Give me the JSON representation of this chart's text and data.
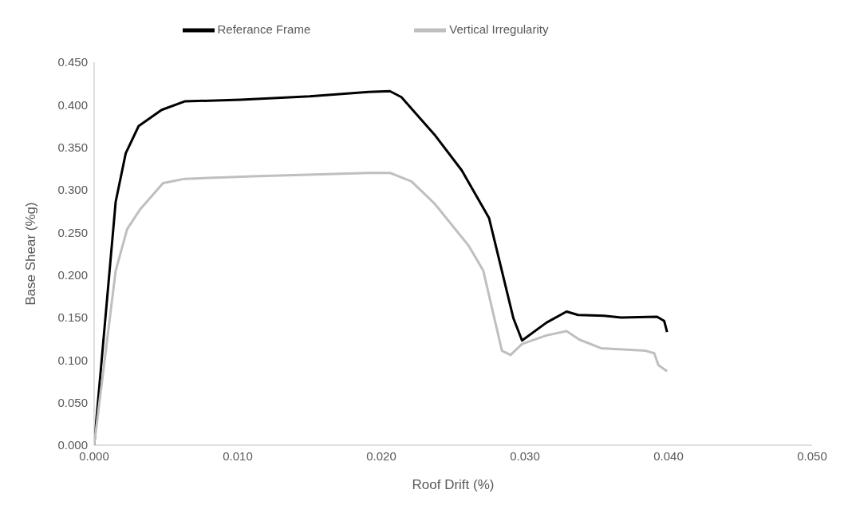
{
  "chart_data": {
    "type": "line",
    "xlabel": "Roof Drift (%)",
    "ylabel": "Base Shear (%g)",
    "xlim": [
      0,
      0.05
    ],
    "xticks": [
      {
        "value": 0,
        "label": "0.000"
      },
      {
        "value": 0.01,
        "label": "0.010"
      },
      {
        "value": 0.02,
        "label": "0.020"
      },
      {
        "value": 0.03,
        "label": "0.030"
      },
      {
        "value": 0.04,
        "label": "0.040"
      },
      {
        "value": 0.05,
        "label": "0.050"
      }
    ],
    "ylim": [
      0,
      0.45
    ],
    "yticks": [
      {
        "value": 0,
        "label": "0.000"
      },
      {
        "value": 0.05,
        "label": "0.050"
      },
      {
        "value": 0.1,
        "label": "0.100"
      },
      {
        "value": 0.15,
        "label": "0.150"
      },
      {
        "value": 0.2,
        "label": "0.200"
      },
      {
        "value": 0.25,
        "label": "0.250"
      },
      {
        "value": 0.3,
        "label": "0.300"
      },
      {
        "value": 0.35,
        "label": "0.350"
      },
      {
        "value": 0.4,
        "label": "0.400"
      },
      {
        "value": 0.45,
        "label": "0.450"
      }
    ],
    "grid": false,
    "legend": "top",
    "marker": "none",
    "line_style": "solid",
    "series": [
      {
        "name": "Referance Frame",
        "color": "#000000",
        "x": [
          0,
          0.0015,
          0.0022,
          0.0031,
          0.0047,
          0.0063,
          0.0102,
          0.015,
          0.0191,
          0.0206,
          0.0214,
          0.0237,
          0.0256,
          0.0275,
          0.0292,
          0.0298,
          0.0315,
          0.0329,
          0.0337,
          0.0355,
          0.0367,
          0.0392,
          0.0397,
          0.0399
        ],
        "values": [
          0,
          0.286,
          0.343,
          0.375,
          0.394,
          0.404,
          0.406,
          0.41,
          0.415,
          0.416,
          0.409,
          0.365,
          0.323,
          0.267,
          0.149,
          0.123,
          0.144,
          0.157,
          0.153,
          0.152,
          0.15,
          0.151,
          0.146,
          0.133
        ]
      },
      {
        "name": "Vertical Irregularity",
        "color": "#bfbfbf",
        "x": [
          0,
          0.0015,
          0.0023,
          0.0032,
          0.0048,
          0.0063,
          0.011,
          0.0191,
          0.0206,
          0.0221,
          0.0237,
          0.0261,
          0.0271,
          0.0284,
          0.029,
          0.0298,
          0.0315,
          0.0329,
          0.0338,
          0.0353,
          0.0384,
          0.039,
          0.0393,
          0.0399
        ],
        "values": [
          0,
          0.205,
          0.254,
          0.277,
          0.308,
          0.313,
          0.316,
          0.32,
          0.32,
          0.31,
          0.284,
          0.234,
          0.205,
          0.111,
          0.106,
          0.119,
          0.129,
          0.134,
          0.124,
          0.114,
          0.111,
          0.108,
          0.094,
          0.087
        ]
      }
    ]
  }
}
